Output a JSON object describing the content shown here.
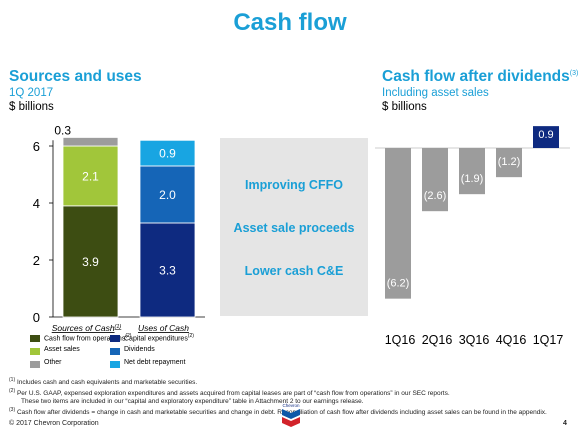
{
  "title": "Cash flow",
  "left": {
    "title": "Sources and uses",
    "subtitle": "1Q 2017",
    "unit": "$ billions",
    "yticks": [
      "0",
      "2",
      "4",
      "6"
    ],
    "legend": [
      {
        "label": "Cash flow from operations",
        "sup": "(2)",
        "color": "#3d4d12"
      },
      {
        "label": "Capital expenditures",
        "sup": "(2)",
        "color": "#0e2a80"
      },
      {
        "label": "Asset sales",
        "sup": "",
        "color": "#a1c63a"
      },
      {
        "label": "Dividends",
        "sup": "",
        "color": "#1565b7"
      },
      {
        "label": "Other",
        "sup": "",
        "color": "#9c9c9c"
      },
      {
        "label": "Net debt repayment",
        "sup": "",
        "color": "#18a5e2"
      }
    ]
  },
  "middle": {
    "items": [
      "Improving CFFO",
      "Asset sale proceeds",
      "Lower cash C&E"
    ]
  },
  "right": {
    "title": "Cash flow after dividends",
    "title_sup": "(3)",
    "subtitle": "Including asset sales",
    "unit": "$ billions"
  },
  "chart_data": [
    {
      "type": "bar",
      "stacked": true,
      "categories": [
        "Sources of Cash",
        "Uses of Cash"
      ],
      "category_sups": [
        "(1)",
        ""
      ],
      "ylim": [
        0,
        6.2
      ],
      "yticks": [
        0,
        2,
        4,
        6
      ],
      "series": [
        {
          "name": "Cash flow from operations",
          "values": [
            3.9,
            null
          ],
          "color": "#3d4d12",
          "label_color": "#ffffff"
        },
        {
          "name": "Asset sales",
          "values": [
            2.1,
            null
          ],
          "color": "#a1c63a",
          "label_color": "#ffffff"
        },
        {
          "name": "Other",
          "values": [
            0.3,
            null
          ],
          "color": "#9c9c9c",
          "label_color": "#000000"
        },
        {
          "name": "Capital expenditures",
          "values": [
            null,
            3.3
          ],
          "color": "#0e2a80",
          "label_color": "#ffffff"
        },
        {
          "name": "Dividends",
          "values": [
            null,
            2.0
          ],
          "color": "#1565b7",
          "label_color": "#ffffff"
        },
        {
          "name": "Net debt repayment",
          "values": [
            null,
            0.9
          ],
          "color": "#18a5e2",
          "label_color": "#ffffff"
        }
      ],
      "data_labels": [
        [
          "3.9",
          "2.1",
          "0.3"
        ],
        [
          "3.3",
          "2.0",
          "0.9"
        ]
      ]
    },
    {
      "type": "bar",
      "title": "Cash flow after dividends",
      "subtitle": "Including asset sales",
      "categories": [
        "1Q16",
        "2Q16",
        "3Q16",
        "4Q16",
        "1Q17"
      ],
      "values": [
        -6.2,
        -2.6,
        -1.9,
        -1.2,
        0.9
      ],
      "labels": [
        "(6.2)",
        "(2.6)",
        "(1.9)",
        "(1.2)",
        "0.9"
      ],
      "colors": {
        "negative": "#9c9c9c",
        "positive": "#0e2a80"
      }
    }
  ],
  "footnotes": [
    {
      "sup": "(1)",
      "text": "Includes cash and cash equivalents and marketable securities."
    },
    {
      "sup": "(2)",
      "text": "Per U.S. GAAP, expensed exploration expenditures and assets acquired from capital leases are part of “cash flow from operations” in our SEC reports."
    },
    {
      "sup": "",
      "text": "These two items are included in our “capital and exploratory expenditure” table in Attachment 2 to our earnings release."
    },
    {
      "sup": "(3)",
      "text": "Cash flow after dividends = change in cash and marketable securities and change in debt. Reconciliation of cash flow after dividends including asset sales can be found in the appendix."
    }
  ],
  "footer": {
    "copyright": "© 2017 Chevron Corporation",
    "page": "4",
    "logo_text": "Chevron"
  }
}
